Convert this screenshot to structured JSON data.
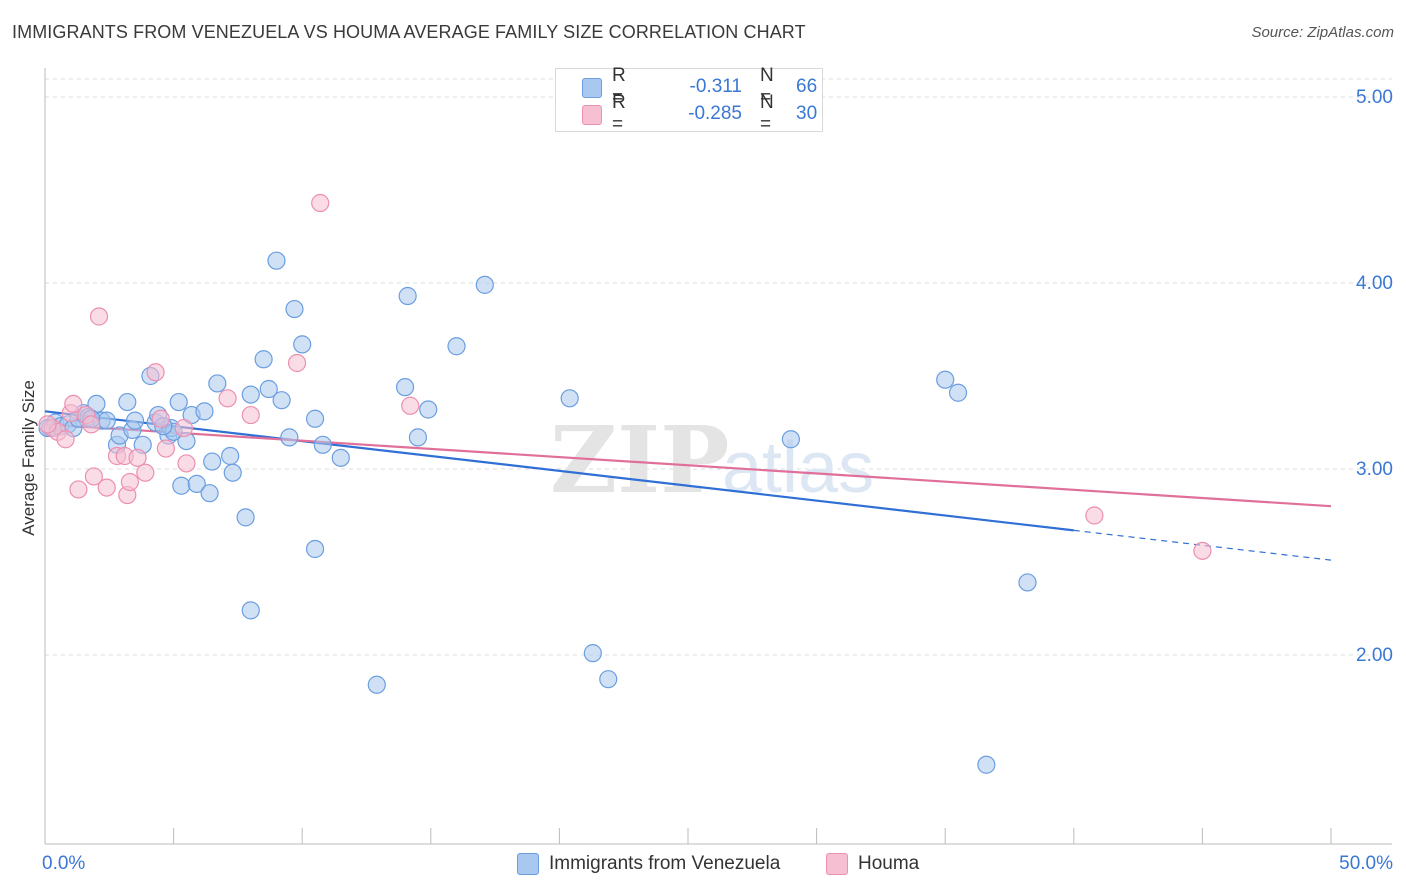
{
  "header": {
    "title": "IMMIGRANTS FROM VENEZUELA VS HOUMA AVERAGE FAMILY SIZE CORRELATION CHART",
    "source": "Source: ZipAtlas.com"
  },
  "legend": {
    "rows": [
      {
        "r_label": "R =",
        "r_value": "-0.311",
        "n_label": "N =",
        "n_value": "66"
      },
      {
        "r_label": "R =",
        "r_value": "-0.285",
        "n_label": "N =",
        "n_value": "30"
      }
    ]
  },
  "watermark": {
    "zip": "ZIP",
    "atlas": "atlas"
  },
  "colors": {
    "blue_fill": "#a9c8ef",
    "blue_stroke": "#6b9ee0",
    "blue_line": "#2f6fd6",
    "pink_fill": "#f6bfd2",
    "pink_stroke": "#ec8fb1",
    "pink_line": "#e0709a",
    "axis_text": "#3a78d4",
    "grid": "#dddddd"
  },
  "chart_data": {
    "type": "scatter",
    "title": "IMMIGRANTS FROM VENEZUELA VS HOUMA AVERAGE FAMILY SIZE CORRELATION CHART",
    "xlabel": "",
    "ylabel": "Average Family Size",
    "xlim": [
      0,
      50
    ],
    "ylim": [
      1.0,
      5.15
    ],
    "x_tick_labels": [
      "0.0%",
      "50.0%"
    ],
    "y_ticks": [
      2.0,
      3.0,
      4.0,
      5.0
    ],
    "y_tick_labels": [
      "2.00",
      "3.00",
      "4.00",
      "5.00"
    ],
    "grid": true,
    "legend_position": "top-center",
    "series": [
      {
        "name": "Immigrants from Venezuela",
        "color": "#a9c8ef",
        "points": [
          [
            0.2,
            3.22
          ],
          [
            0.4,
            3.25
          ],
          [
            0.6,
            3.23
          ],
          [
            0.9,
            3.24
          ],
          [
            1.1,
            3.22
          ],
          [
            1.3,
            3.27
          ],
          [
            1.5,
            3.3
          ],
          [
            1.7,
            3.28
          ],
          [
            2.0,
            3.35
          ],
          [
            2.2,
            3.26
          ],
          [
            2.4,
            3.26
          ],
          [
            2.8,
            3.13
          ],
          [
            2.9,
            3.18
          ],
          [
            3.2,
            3.36
          ],
          [
            3.4,
            3.21
          ],
          [
            3.8,
            3.13
          ],
          [
            4.1,
            3.5
          ],
          [
            4.3,
            3.25
          ],
          [
            4.4,
            3.29
          ],
          [
            4.8,
            3.18
          ],
          [
            4.9,
            3.22
          ],
          [
            5.0,
            3.2
          ],
          [
            5.2,
            3.36
          ],
          [
            5.3,
            2.91
          ],
          [
            5.5,
            3.15
          ],
          [
            5.7,
            3.29
          ],
          [
            5.9,
            2.92
          ],
          [
            6.2,
            3.31
          ],
          [
            6.4,
            2.87
          ],
          [
            6.5,
            3.04
          ],
          [
            6.7,
            3.46
          ],
          [
            7.2,
            3.07
          ],
          [
            7.3,
            2.98
          ],
          [
            7.8,
            2.74
          ],
          [
            8.0,
            2.24
          ],
          [
            8.0,
            3.4
          ],
          [
            8.5,
            3.59
          ],
          [
            8.7,
            3.43
          ],
          [
            9.0,
            4.12
          ],
          [
            9.2,
            3.37
          ],
          [
            9.5,
            3.17
          ],
          [
            9.7,
            3.86
          ],
          [
            10.0,
            3.67
          ],
          [
            10.5,
            3.27
          ],
          [
            10.5,
            2.57
          ],
          [
            10.8,
            3.13
          ],
          [
            11.5,
            3.06
          ],
          [
            12.9,
            1.84
          ],
          [
            14.0,
            3.44
          ],
          [
            14.1,
            3.93
          ],
          [
            14.5,
            3.17
          ],
          [
            14.9,
            3.32
          ],
          [
            16.0,
            3.66
          ],
          [
            17.1,
            3.99
          ],
          [
            20.4,
            3.38
          ],
          [
            21.3,
            2.01
          ],
          [
            21.9,
            1.87
          ],
          [
            29.0,
            3.16
          ],
          [
            35.0,
            3.48
          ],
          [
            35.5,
            3.41
          ],
          [
            36.6,
            1.41
          ],
          [
            38.2,
            2.39
          ],
          [
            0.1,
            3.22
          ],
          [
            1.8,
            3.27
          ],
          [
            3.5,
            3.26
          ],
          [
            4.6,
            3.23
          ]
        ]
      },
      {
        "name": "Houma",
        "color": "#f6bfd2",
        "points": [
          [
            0.3,
            3.22
          ],
          [
            0.5,
            3.2
          ],
          [
            0.8,
            3.16
          ],
          [
            1.0,
            3.3
          ],
          [
            1.1,
            3.35
          ],
          [
            1.3,
            2.89
          ],
          [
            1.6,
            3.29
          ],
          [
            1.8,
            3.24
          ],
          [
            1.9,
            2.96
          ],
          [
            2.1,
            3.82
          ],
          [
            2.4,
            2.9
          ],
          [
            2.8,
            3.07
          ],
          [
            3.1,
            3.07
          ],
          [
            3.2,
            2.86
          ],
          [
            3.3,
            2.93
          ],
          [
            3.6,
            3.06
          ],
          [
            3.9,
            2.98
          ],
          [
            4.3,
            3.52
          ],
          [
            4.5,
            3.27
          ],
          [
            4.7,
            3.11
          ],
          [
            5.4,
            3.22
          ],
          [
            5.5,
            3.03
          ],
          [
            7.1,
            3.38
          ],
          [
            8.0,
            3.29
          ],
          [
            9.8,
            3.57
          ],
          [
            10.7,
            4.43
          ],
          [
            14.2,
            3.34
          ],
          [
            40.8,
            2.75
          ],
          [
            45.0,
            2.56
          ],
          [
            0.1,
            3.24
          ]
        ]
      }
    ],
    "trend_lines": [
      {
        "series": "Immigrants from Venezuela",
        "x": [
          0,
          40
        ],
        "y": [
          3.31,
          2.67
        ],
        "dashed_extension": [
          40,
          50
        ],
        "dashed_y": [
          2.67,
          2.51
        ]
      },
      {
        "series": "Houma",
        "x": [
          0,
          50
        ],
        "y": [
          3.24,
          2.8
        ]
      }
    ]
  }
}
